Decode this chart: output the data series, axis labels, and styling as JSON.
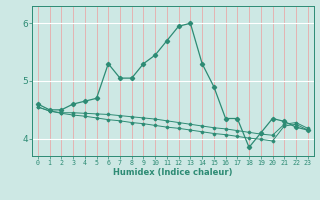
{
  "xlabel": "Humidex (Indice chaleur)",
  "x": [
    0,
    1,
    2,
    3,
    4,
    5,
    6,
    7,
    8,
    9,
    10,
    11,
    12,
    13,
    14,
    15,
    16,
    17,
    18,
    19,
    20,
    21,
    22,
    23
  ],
  "line1": [
    4.6,
    4.5,
    4.5,
    4.6,
    4.65,
    4.7,
    5.3,
    5.05,
    5.05,
    5.3,
    5.45,
    5.7,
    5.95,
    6.0,
    5.3,
    4.9,
    4.35,
    4.35,
    3.85,
    4.1,
    4.35,
    4.3,
    4.2,
    4.15
  ],
  "line2": [
    4.55,
    4.48,
    4.45,
    4.45,
    4.44,
    4.43,
    4.42,
    4.4,
    4.38,
    4.36,
    4.34,
    4.31,
    4.28,
    4.25,
    4.22,
    4.19,
    4.17,
    4.14,
    4.11,
    4.08,
    4.06,
    4.25,
    4.28,
    4.18
  ],
  "line3": [
    4.55,
    4.48,
    4.44,
    4.41,
    4.39,
    4.36,
    4.33,
    4.31,
    4.28,
    4.26,
    4.23,
    4.2,
    4.18,
    4.15,
    4.12,
    4.09,
    4.07,
    4.04,
    4.01,
    3.99,
    3.96,
    4.22,
    4.25,
    4.15
  ],
  "ylim": [
    3.7,
    6.3
  ],
  "yticks": [
    4,
    5,
    6
  ],
  "xticks": [
    0,
    1,
    2,
    3,
    4,
    5,
    6,
    7,
    8,
    9,
    10,
    11,
    12,
    13,
    14,
    15,
    16,
    17,
    18,
    19,
    20,
    21,
    22,
    23
  ],
  "line_color": "#2d8b74",
  "bg_color": "#cde8e4",
  "grid_v_color": "#e8aaaa",
  "grid_h_color": "#ffffff"
}
